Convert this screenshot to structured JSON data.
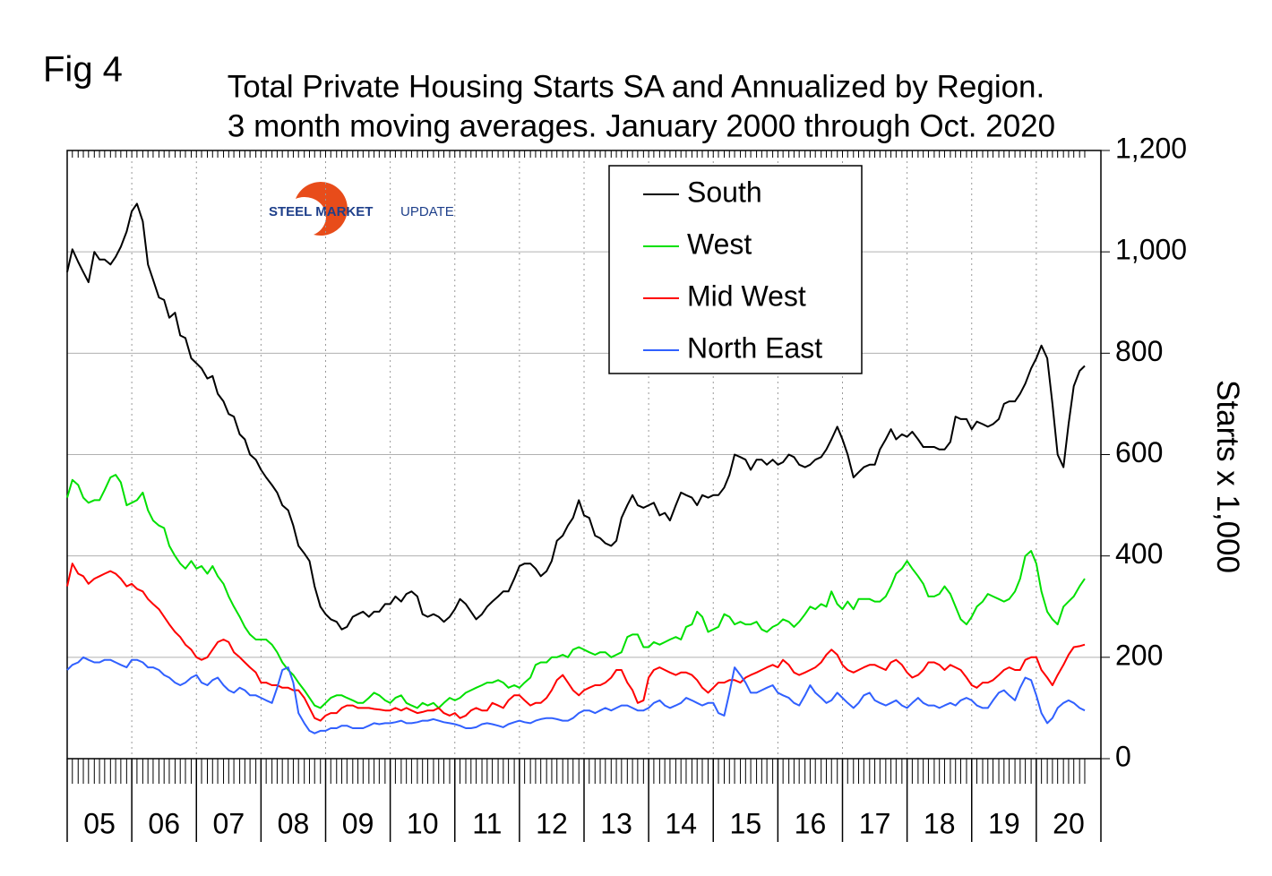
{
  "chart_data": {
    "type": "line",
    "label": "Fig 4",
    "title": "Total Private Housing Starts SA and Annualized by Region.",
    "subtitle": "3 month moving averages. January 2000 through Oct. 2020",
    "y_label": "Starts x 1,000",
    "logo": {
      "bold": "STEEL MARKET",
      "light": "UPDATE"
    },
    "legend": "top-center",
    "grid": true,
    "xlim": [
      2005,
      2021
    ],
    "xgrid": [
      2005,
      2006,
      2007,
      2008,
      2009,
      2010,
      2011,
      2012,
      2013,
      2014,
      2015,
      2016,
      2017,
      2018,
      2019,
      2020,
      2021
    ],
    "xticks": [
      {
        "value": 2005.5,
        "label": "05"
      },
      {
        "value": 2006.5,
        "label": "06"
      },
      {
        "value": 2007.5,
        "label": "07"
      },
      {
        "value": 2008.5,
        "label": "08"
      },
      {
        "value": 2009.5,
        "label": "09"
      },
      {
        "value": 2010.5,
        "label": "10"
      },
      {
        "value": 2011.5,
        "label": "11"
      },
      {
        "value": 2012.5,
        "label": "12"
      },
      {
        "value": 2013.5,
        "label": "13"
      },
      {
        "value": 2014.5,
        "label": "14"
      },
      {
        "value": 2015.5,
        "label": "15"
      },
      {
        "value": 2016.5,
        "label": "16"
      },
      {
        "value": 2017.5,
        "label": "17"
      },
      {
        "value": 2018.5,
        "label": "18"
      },
      {
        "value": 2019.5,
        "label": "19"
      },
      {
        "value": 2020.5,
        "label": "20"
      }
    ],
    "ylim": [
      0,
      1200
    ],
    "yticks": [
      0,
      200,
      400,
      600,
      800,
      {
        "value": 1000,
        "label": "1,000"
      },
      {
        "value": 1200,
        "label": "1,200"
      }
    ],
    "x": [
      2005,
      2005.08,
      2005.17,
      2005.25,
      2005.33,
      2005.42,
      2005.5,
      2005.58,
      2005.67,
      2005.75,
      2005.83,
      2005.92,
      2006,
      2006.08,
      2006.17,
      2006.25,
      2006.33,
      2006.42,
      2006.5,
      2006.58,
      2006.67,
      2006.75,
      2006.83,
      2006.92,
      2007,
      2007.08,
      2007.17,
      2007.25,
      2007.33,
      2007.42,
      2007.5,
      2007.58,
      2007.67,
      2007.75,
      2007.83,
      2007.92,
      2008,
      2008.08,
      2008.17,
      2008.25,
      2008.33,
      2008.42,
      2008.5,
      2008.58,
      2008.67,
      2008.75,
      2008.83,
      2008.92,
      2009,
      2009.08,
      2009.17,
      2009.25,
      2009.33,
      2009.42,
      2009.5,
      2009.58,
      2009.67,
      2009.75,
      2009.83,
      2009.92,
      2010,
      2010.08,
      2010.17,
      2010.25,
      2010.33,
      2010.42,
      2010.5,
      2010.58,
      2010.67,
      2010.75,
      2010.83,
      2010.92,
      2011,
      2011.08,
      2011.17,
      2011.25,
      2011.33,
      2011.42,
      2011.5,
      2011.58,
      2011.67,
      2011.75,
      2011.83,
      2011.92,
      2012,
      2012.08,
      2012.17,
      2012.25,
      2012.33,
      2012.42,
      2012.5,
      2012.58,
      2012.67,
      2012.75,
      2012.83,
      2012.92,
      2013,
      2013.08,
      2013.17,
      2013.25,
      2013.33,
      2013.42,
      2013.5,
      2013.58,
      2013.67,
      2013.75,
      2013.83,
      2013.92,
      2014,
      2014.08,
      2014.17,
      2014.25,
      2014.33,
      2014.42,
      2014.5,
      2014.58,
      2014.67,
      2014.75,
      2014.83,
      2014.92,
      2015,
      2015.08,
      2015.17,
      2015.25,
      2015.33,
      2015.42,
      2015.5,
      2015.58,
      2015.67,
      2015.75,
      2015.83,
      2015.92,
      2016,
      2016.08,
      2016.17,
      2016.25,
      2016.33,
      2016.42,
      2016.5,
      2016.58,
      2016.67,
      2016.75,
      2016.83,
      2016.92,
      2017,
      2017.08,
      2017.17,
      2017.25,
      2017.33,
      2017.42,
      2017.5,
      2017.58,
      2017.67,
      2017.75,
      2017.83,
      2017.92,
      2018,
      2018.08,
      2018.17,
      2018.25,
      2018.33,
      2018.42,
      2018.5,
      2018.58,
      2018.67,
      2018.75,
      2018.83,
      2018.92,
      2019,
      2019.08,
      2019.17,
      2019.25,
      2019.33,
      2019.42,
      2019.5,
      2019.58,
      2019.67,
      2019.75,
      2019.83,
      2019.92,
      2020,
      2020.08,
      2020.17,
      2020.25,
      2020.33,
      2020.42,
      2020.5,
      2020.58,
      2020.67,
      2020.75
    ],
    "series": [
      {
        "name": "South",
        "color": "#000000",
        "values": [
          960,
          1005,
          980,
          960,
          940,
          1000,
          985,
          985,
          975,
          990,
          1010,
          1040,
          1080,
          1095,
          1060,
          975,
          945,
          910,
          905,
          870,
          880,
          835,
          830,
          790,
          780,
          770,
          750,
          755,
          720,
          705,
          680,
          675,
          640,
          630,
          600,
          590,
          570,
          555,
          540,
          525,
          500,
          490,
          460,
          420,
          405,
          390,
          340,
          300,
          285,
          275,
          270,
          255,
          260,
          280,
          285,
          290,
          280,
          290,
          290,
          305,
          305,
          320,
          310,
          325,
          330,
          320,
          285,
          280,
          285,
          280,
          270,
          280,
          295,
          315,
          305,
          290,
          275,
          285,
          300,
          310,
          320,
          330,
          330,
          355,
          380,
          385,
          385,
          375,
          360,
          370,
          390,
          430,
          440,
          460,
          475,
          510,
          480,
          475,
          440,
          435,
          425,
          420,
          430,
          475,
          500,
          520,
          500,
          495,
          500,
          505,
          480,
          485,
          470,
          500,
          525,
          520,
          515,
          500,
          520,
          515,
          520,
          520,
          535,
          560,
          600,
          595,
          590,
          570,
          590,
          590,
          580,
          590,
          580,
          585,
          600,
          595,
          580,
          575,
          580,
          590,
          595,
          610,
          630,
          655,
          630,
          600,
          555,
          565,
          575,
          580,
          580,
          610,
          630,
          650,
          630,
          640,
          635,
          645,
          630,
          615,
          615,
          615,
          610,
          610,
          625,
          675,
          670,
          670,
          650,
          665,
          660,
          655,
          660,
          670,
          700,
          705,
          705,
          720,
          740,
          770,
          790,
          815,
          790,
          700,
          600,
          575,
          660,
          735,
          765,
          775
        ]
      },
      {
        "name": "West",
        "color": "#00e000",
        "values": [
          515,
          550,
          540,
          515,
          505,
          510,
          510,
          530,
          555,
          560,
          545,
          500,
          505,
          510,
          525,
          490,
          470,
          460,
          455,
          420,
          400,
          385,
          375,
          390,
          375,
          380,
          365,
          380,
          360,
          345,
          320,
          300,
          280,
          260,
          245,
          235,
          235,
          235,
          225,
          210,
          190,
          175,
          165,
          150,
          135,
          120,
          105,
          100,
          110,
          120,
          125,
          125,
          120,
          115,
          110,
          110,
          120,
          130,
          125,
          115,
          110,
          120,
          125,
          110,
          105,
          100,
          110,
          105,
          110,
          100,
          110,
          120,
          115,
          120,
          130,
          135,
          140,
          145,
          150,
          150,
          155,
          150,
          140,
          145,
          140,
          150,
          160,
          185,
          190,
          190,
          200,
          200,
          205,
          200,
          215,
          220,
          215,
          210,
          205,
          210,
          210,
          200,
          205,
          210,
          240,
          245,
          245,
          220,
          220,
          230,
          225,
          230,
          235,
          240,
          235,
          260,
          265,
          290,
          280,
          250,
          255,
          260,
          285,
          280,
          265,
          270,
          265,
          265,
          270,
          255,
          250,
          260,
          265,
          275,
          270,
          260,
          270,
          285,
          300,
          295,
          305,
          300,
          330,
          305,
          295,
          310,
          295,
          315,
          315,
          315,
          310,
          310,
          320,
          340,
          365,
          375,
          390,
          375,
          360,
          345,
          320,
          320,
          325,
          340,
          325,
          300,
          275,
          265,
          280,
          300,
          310,
          325,
          320,
          315,
          310,
          315,
          330,
          355,
          400,
          410,
          385,
          330,
          290,
          275,
          265,
          300,
          310,
          320,
          340,
          355
        ]
      },
      {
        "name": "Mid West",
        "color": "#ff0000",
        "values": [
          340,
          385,
          365,
          360,
          345,
          355,
          360,
          365,
          370,
          365,
          355,
          340,
          345,
          335,
          330,
          315,
          305,
          295,
          280,
          265,
          250,
          240,
          225,
          215,
          200,
          195,
          200,
          215,
          230,
          235,
          230,
          210,
          200,
          190,
          180,
          170,
          150,
          150,
          145,
          145,
          140,
          140,
          135,
          135,
          120,
          100,
          80,
          75,
          85,
          90,
          90,
          100,
          105,
          105,
          100,
          100,
          100,
          98,
          97,
          95,
          95,
          100,
          95,
          100,
          95,
          90,
          92,
          95,
          95,
          100,
          90,
          85,
          90,
          80,
          85,
          95,
          100,
          95,
          95,
          110,
          105,
          100,
          115,
          125,
          125,
          115,
          105,
          110,
          110,
          120,
          135,
          155,
          165,
          150,
          135,
          125,
          135,
          140,
          145,
          145,
          150,
          160,
          175,
          175,
          150,
          135,
          110,
          115,
          160,
          175,
          180,
          175,
          170,
          165,
          170,
          170,
          165,
          155,
          140,
          130,
          140,
          150,
          150,
          155,
          155,
          150,
          160,
          165,
          170,
          175,
          180,
          185,
          180,
          195,
          185,
          170,
          165,
          170,
          175,
          180,
          190,
          205,
          215,
          205,
          185,
          175,
          170,
          175,
          180,
          185,
          185,
          180,
          175,
          190,
          195,
          185,
          170,
          160,
          165,
          175,
          190,
          190,
          185,
          175,
          185,
          180,
          175,
          160,
          145,
          140,
          150,
          150,
          155,
          165,
          175,
          180,
          175,
          175,
          195,
          200,
          200,
          175,
          160,
          145,
          165,
          185,
          205,
          220,
          222,
          225
        ]
      },
      {
        "name": "North East",
        "color": "#3060ff",
        "values": [
          175,
          185,
          190,
          200,
          195,
          190,
          190,
          195,
          195,
          190,
          185,
          180,
          195,
          195,
          190,
          180,
          180,
          175,
          165,
          160,
          150,
          145,
          150,
          160,
          165,
          150,
          145,
          155,
          160,
          145,
          135,
          130,
          140,
          135,
          125,
          125,
          120,
          115,
          110,
          140,
          175,
          180,
          150,
          90,
          70,
          55,
          50,
          55,
          55,
          60,
          60,
          65,
          65,
          60,
          60,
          60,
          65,
          70,
          68,
          70,
          70,
          72,
          75,
          70,
          70,
          72,
          75,
          75,
          78,
          75,
          72,
          70,
          68,
          65,
          60,
          60,
          62,
          68,
          70,
          68,
          65,
          62,
          68,
          72,
          75,
          72,
          70,
          75,
          78,
          80,
          80,
          78,
          75,
          75,
          80,
          90,
          95,
          95,
          90,
          95,
          100,
          95,
          100,
          105,
          105,
          100,
          95,
          95,
          100,
          110,
          115,
          105,
          100,
          105,
          110,
          120,
          115,
          110,
          105,
          110,
          110,
          90,
          85,
          130,
          180,
          165,
          150,
          130,
          130,
          135,
          140,
          145,
          130,
          125,
          120,
          110,
          105,
          125,
          145,
          130,
          120,
          110,
          115,
          130,
          120,
          110,
          100,
          110,
          125,
          130,
          115,
          110,
          105,
          110,
          115,
          105,
          100,
          110,
          120,
          110,
          105,
          105,
          100,
          105,
          110,
          105,
          115,
          120,
          115,
          105,
          100,
          100,
          115,
          130,
          135,
          125,
          115,
          140,
          160,
          155,
          125,
          90,
          70,
          80,
          100,
          110,
          115,
          110,
          100,
          95
        ]
      }
    ]
  }
}
